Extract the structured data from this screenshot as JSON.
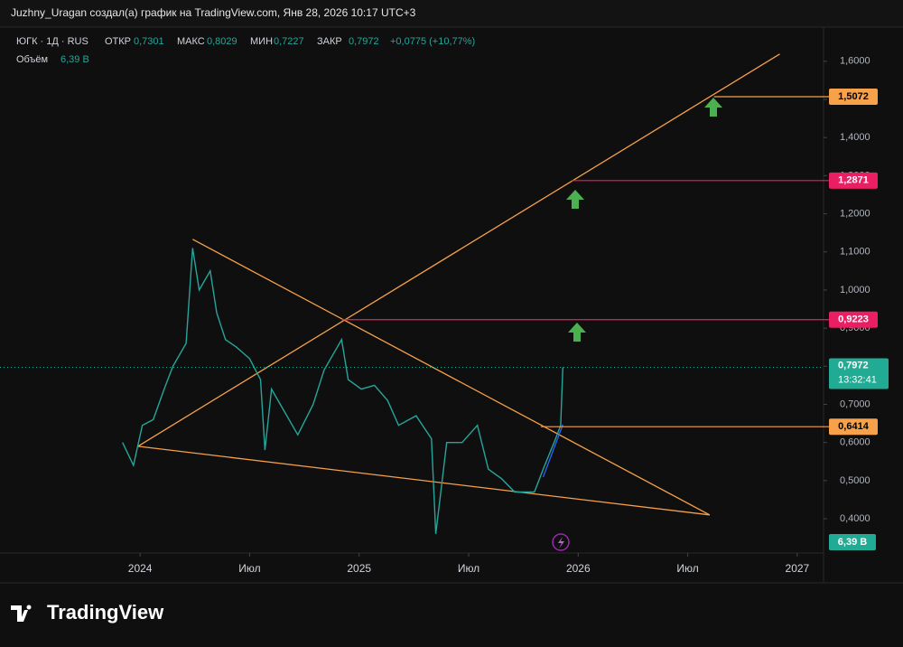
{
  "header": {
    "text": "Juzhny_Uragan создал(а) график на TradingView.com, Янв 28, 2026 10:17 UTC+3"
  },
  "legend": {
    "symbol": "ЮГК · 1Д · RUS",
    "open_label": "ОТКР",
    "open": "0,7301",
    "high_label": "МАКС",
    "high": "0,8029",
    "low_label": "МИН",
    "low": "0,7227",
    "close_label": "ЗАКР",
    "close": "0,7972",
    "change": "+0,0775 (+10,77%)",
    "volume_label": "Объём",
    "volume": "6,39 B"
  },
  "chart_data": {
    "type": "line",
    "x": [
      2023.92,
      2023.97,
      2024.01,
      2024.06,
      2024.11,
      2024.15,
      2024.21,
      2024.24,
      2024.27,
      2024.32,
      2024.35,
      2024.39,
      2024.44,
      2024.5,
      2024.55,
      2024.57,
      2024.6,
      2024.66,
      2024.72,
      2024.79,
      2024.84,
      2024.9,
      2024.92,
      2024.95,
      2025.01,
      2025.07,
      2025.13,
      2025.18,
      2025.26,
      2025.33,
      2025.35,
      2025.4,
      2025.47,
      2025.54,
      2025.59,
      2025.65,
      2025.71,
      2025.8,
      2025.84,
      2025.89,
      2025.92,
      2025.93
    ],
    "series": [
      {
        "name": "ЮГК",
        "color": "#26a69a",
        "values": [
          0.6,
          0.54,
          0.645,
          0.66,
          0.74,
          0.8,
          0.86,
          1.11,
          1.0,
          1.05,
          0.94,
          0.87,
          0.85,
          0.82,
          0.765,
          0.58,
          0.74,
          0.68,
          0.62,
          0.7,
          0.79,
          0.85,
          0.87,
          0.765,
          0.74,
          0.75,
          0.71,
          0.645,
          0.67,
          0.61,
          0.36,
          0.6,
          0.6,
          0.645,
          0.53,
          0.505,
          0.47,
          0.47,
          0.53,
          0.6,
          0.645,
          0.7972
        ]
      }
    ],
    "xlim": [
      2023.41,
      2027.12
    ],
    "xticks": [
      2024,
      {
        "value": 2024.5,
        "label": "Июл"
      },
      2025,
      {
        "value": 2025.5,
        "label": "Июл"
      },
      2026,
      {
        "value": 2026.5,
        "label": "Июл"
      },
      2027
    ],
    "ylim": [
      0.31,
      1.666
    ],
    "yticks": [
      {
        "value": 0.4,
        "label": "0,4000"
      },
      {
        "value": 0.5,
        "label": "0,5000"
      },
      {
        "value": 0.6,
        "label": "0,6000"
      },
      {
        "value": 0.7,
        "label": "0,7000"
      },
      {
        "value": 0.8,
        "label": "0,8000"
      },
      {
        "value": 0.9,
        "label": "0,9000"
      },
      {
        "value": 1.0,
        "label": "1,0000"
      },
      {
        "value": 1.1,
        "label": "1,1000"
      },
      {
        "value": 1.2,
        "label": "1,2000"
      },
      {
        "value": 1.3,
        "label": "1,3000"
      },
      {
        "value": 1.4,
        "label": "1,4000"
      },
      {
        "value": 1.5,
        "label": "1,5000"
      },
      {
        "value": 1.6,
        "label": "1,6000"
      }
    ],
    "trendlines": [
      {
        "color": "#f7a14a",
        "x": [
          2023.99,
          2026.92
        ],
        "y": [
          0.59,
          1.619
        ]
      },
      {
        "color": "#f7a14a",
        "x": [
          2024.24,
          2026.6
        ],
        "y": [
          1.133,
          0.41
        ]
      },
      {
        "color": "#f7a14a",
        "x": [
          2023.99,
          2026.6
        ],
        "y": [
          0.59,
          0.41
        ]
      },
      {
        "color": "#2962ff",
        "x": [
          2025.84,
          2025.93
        ],
        "y": [
          0.509,
          0.647
        ]
      }
    ],
    "levels": [
      {
        "value": 1.5072,
        "label": "1,5072",
        "color": "#f7a14a",
        "x_start": 2026.62
      },
      {
        "value": 1.2871,
        "label": "1,2871",
        "color": "#e91e63",
        "x_start": 2025.97
      },
      {
        "value": 0.9223,
        "label": "0,9223",
        "color": "#e91e63",
        "x_start": 2024.92
      },
      {
        "value": 0.6414,
        "label": "0,6414",
        "color": "#f7a14a",
        "x_start": 2025.83
      }
    ],
    "last_price": {
      "value": 0.7972,
      "label": "0,7972",
      "time": "13:32:41",
      "color": "#22ab94"
    }
  },
  "footer": {
    "logo": "TradingView"
  }
}
